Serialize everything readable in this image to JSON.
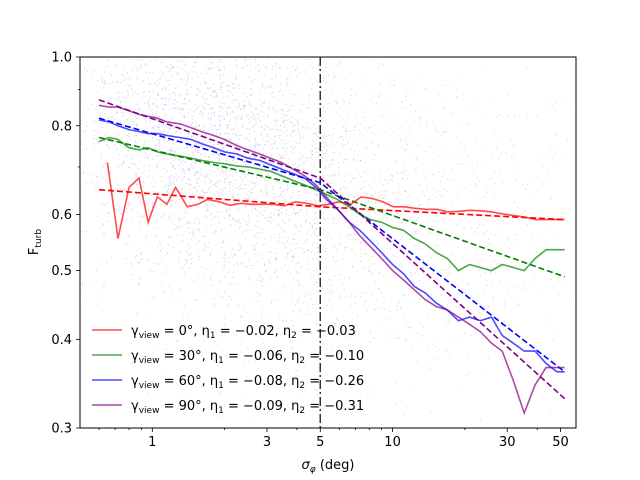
{
  "chart_data": {
    "type": "line",
    "title": "",
    "xlabel": "σ_φ (deg)",
    "ylabel": "F_turb",
    "xscale": "log",
    "yscale": "log",
    "xlim": [
      0.5,
      58
    ],
    "ylim": [
      0.3,
      1.0
    ],
    "x_ticks": [
      {
        "value": 1,
        "label": "1"
      },
      {
        "value": 3,
        "label": "3"
      },
      {
        "value": 5,
        "label": "5"
      },
      {
        "value": 10,
        "label": "10"
      },
      {
        "value": 30,
        "label": "30"
      },
      {
        "value": 50,
        "label": "50"
      }
    ],
    "y_ticks": [
      {
        "value": 0.3,
        "label": "0.3"
      },
      {
        "value": 0.4,
        "label": "0.4"
      },
      {
        "value": 0.5,
        "label": "0.5"
      },
      {
        "value": 0.6,
        "label": "0.6"
      },
      {
        "value": 0.8,
        "label": "0.8"
      },
      {
        "value": 1.0,
        "label": "1.0"
      }
    ],
    "vline": {
      "x": 5,
      "style": "dashdot",
      "color": "#333333"
    },
    "legend_position": "lower-left",
    "series": [
      {
        "name": "γview = 0°, η1 = −0.02, η2 = −0.03",
        "legend_parts": {
          "gamma": "0°",
          "eta1": "−0.02",
          "eta2": "−0.03"
        },
        "color": "#ff0000",
        "x": [
          0.65,
          0.72,
          0.8,
          0.88,
          0.96,
          1.05,
          1.15,
          1.25,
          1.4,
          1.55,
          1.7,
          1.9,
          2.1,
          2.35,
          2.6,
          2.9,
          3.2,
          3.55,
          3.95,
          4.4,
          4.9,
          5.4,
          6.0,
          6.7,
          7.4,
          8.2,
          9.1,
          10.1,
          11.2,
          12.4,
          13.8,
          15.3,
          17.0,
          18.9,
          21.0,
          23.3,
          25.9,
          28.7,
          31.9,
          35.4,
          39.3,
          43.6,
          48.4,
          52.0
        ],
        "y": [
          0.71,
          0.555,
          0.655,
          0.675,
          0.585,
          0.635,
          0.62,
          0.655,
          0.615,
          0.62,
          0.63,
          0.625,
          0.618,
          0.622,
          0.62,
          0.62,
          0.62,
          0.617,
          0.625,
          0.622,
          0.617,
          0.62,
          0.625,
          0.62,
          0.635,
          0.632,
          0.625,
          0.615,
          0.615,
          0.612,
          0.61,
          0.61,
          0.605,
          0.606,
          0.608,
          0.607,
          0.605,
          0.601,
          0.598,
          0.595,
          0.59,
          0.59,
          0.59,
          0.59
        ],
        "fit": {
          "x": [
            0.6,
            5,
            52
          ],
          "y": [
            0.65,
            0.615,
            0.59
          ]
        }
      },
      {
        "name": "γview = 30°, η1 = −0.06, η2 = −0.10",
        "legend_parts": {
          "gamma": "30°",
          "eta1": "−0.06",
          "eta2": "−0.10"
        },
        "color": "#008000",
        "x": [
          0.6,
          0.66,
          0.72,
          0.8,
          0.88,
          0.96,
          1.05,
          1.15,
          1.3,
          1.45,
          1.6,
          1.8,
          2.0,
          2.25,
          2.5,
          2.8,
          3.1,
          3.45,
          3.85,
          4.3,
          4.8,
          5.3,
          5.9,
          6.6,
          7.3,
          8.1,
          9.0,
          10.0,
          11.1,
          12.3,
          13.7,
          15.2,
          16.9,
          18.8,
          20.9,
          23.2,
          25.8,
          28.6,
          31.8,
          35.3,
          39.2,
          43.5,
          48.3,
          52.0
        ],
        "y": [
          0.76,
          0.77,
          0.765,
          0.745,
          0.74,
          0.745,
          0.735,
          0.73,
          0.725,
          0.72,
          0.715,
          0.71,
          0.707,
          0.702,
          0.7,
          0.695,
          0.69,
          0.68,
          0.67,
          0.66,
          0.65,
          0.64,
          0.63,
          0.615,
          0.6,
          0.59,
          0.585,
          0.575,
          0.57,
          0.555,
          0.545,
          0.53,
          0.52,
          0.5,
          0.51,
          0.505,
          0.5,
          0.51,
          0.505,
          0.5,
          0.52,
          0.535,
          0.535,
          0.535
        ],
        "fit": {
          "x": [
            0.6,
            5,
            52
          ],
          "y": [
            0.77,
            0.65,
            0.49
          ]
        }
      },
      {
        "name": "γview = 60°, η1 = −0.08, η2 = −0.26",
        "legend_parts": {
          "gamma": "60°",
          "eta1": "−0.08",
          "eta2": "−0.26"
        },
        "color": "#0000ff",
        "x": [
          0.6,
          0.66,
          0.72,
          0.8,
          0.88,
          0.96,
          1.05,
          1.15,
          1.3,
          1.45,
          1.6,
          1.8,
          2.0,
          2.25,
          2.5,
          2.8,
          3.1,
          3.45,
          3.85,
          4.3,
          4.8,
          5.3,
          5.9,
          6.6,
          7.3,
          8.1,
          9.0,
          10.0,
          11.1,
          12.3,
          13.7,
          15.2,
          16.9,
          18.8,
          20.9,
          23.2,
          25.8,
          28.6,
          31.8,
          35.3,
          39.2,
          43.5,
          48.3,
          52.0
        ],
        "y": [
          0.815,
          0.81,
          0.8,
          0.79,
          0.785,
          0.78,
          0.78,
          0.775,
          0.77,
          0.765,
          0.755,
          0.745,
          0.735,
          0.73,
          0.72,
          0.715,
          0.705,
          0.695,
          0.685,
          0.675,
          0.655,
          0.63,
          0.61,
          0.585,
          0.57,
          0.55,
          0.53,
          0.51,
          0.495,
          0.475,
          0.465,
          0.45,
          0.44,
          0.425,
          0.43,
          0.425,
          0.43,
          0.405,
          0.395,
          0.385,
          0.385,
          0.37,
          0.36,
          0.36
        ],
        "fit": {
          "x": [
            0.6,
            5,
            52
          ],
          "y": [
            0.82,
            0.665,
            0.36
          ]
        }
      },
      {
        "name": "γview = 90°, η1 = −0.09, η2 = −0.31",
        "legend_parts": {
          "gamma": "90°",
          "eta1": "−0.09",
          "eta2": "−0.31"
        },
        "color": "#800080",
        "x": [
          0.6,
          0.66,
          0.72,
          0.8,
          0.88,
          0.96,
          1.05,
          1.15,
          1.3,
          1.45,
          1.6,
          1.8,
          2.0,
          2.25,
          2.5,
          2.8,
          3.1,
          3.45,
          3.85,
          4.3,
          4.8,
          5.3,
          5.9,
          6.6,
          7.3,
          8.1,
          9.0,
          10.0,
          11.1,
          12.3,
          13.7,
          15.2,
          16.9,
          18.8,
          20.9,
          23.2,
          25.8,
          28.6,
          31.8,
          35.3,
          39.2,
          43.5,
          48.3,
          52.0
        ],
        "y": [
          0.855,
          0.85,
          0.85,
          0.84,
          0.83,
          0.825,
          0.82,
          0.81,
          0.805,
          0.795,
          0.785,
          0.775,
          0.765,
          0.75,
          0.74,
          0.73,
          0.72,
          0.71,
          0.695,
          0.68,
          0.66,
          0.635,
          0.61,
          0.585,
          0.56,
          0.54,
          0.52,
          0.5,
          0.485,
          0.47,
          0.455,
          0.445,
          0.44,
          0.43,
          0.42,
          0.41,
          0.395,
          0.385,
          0.35,
          0.315,
          0.345,
          0.365,
          0.365,
          0.365
        ],
        "fit": {
          "x": [
            0.6,
            5,
            52
          ],
          "y": [
            0.87,
            0.675,
            0.33
          ]
        }
      }
    ]
  }
}
